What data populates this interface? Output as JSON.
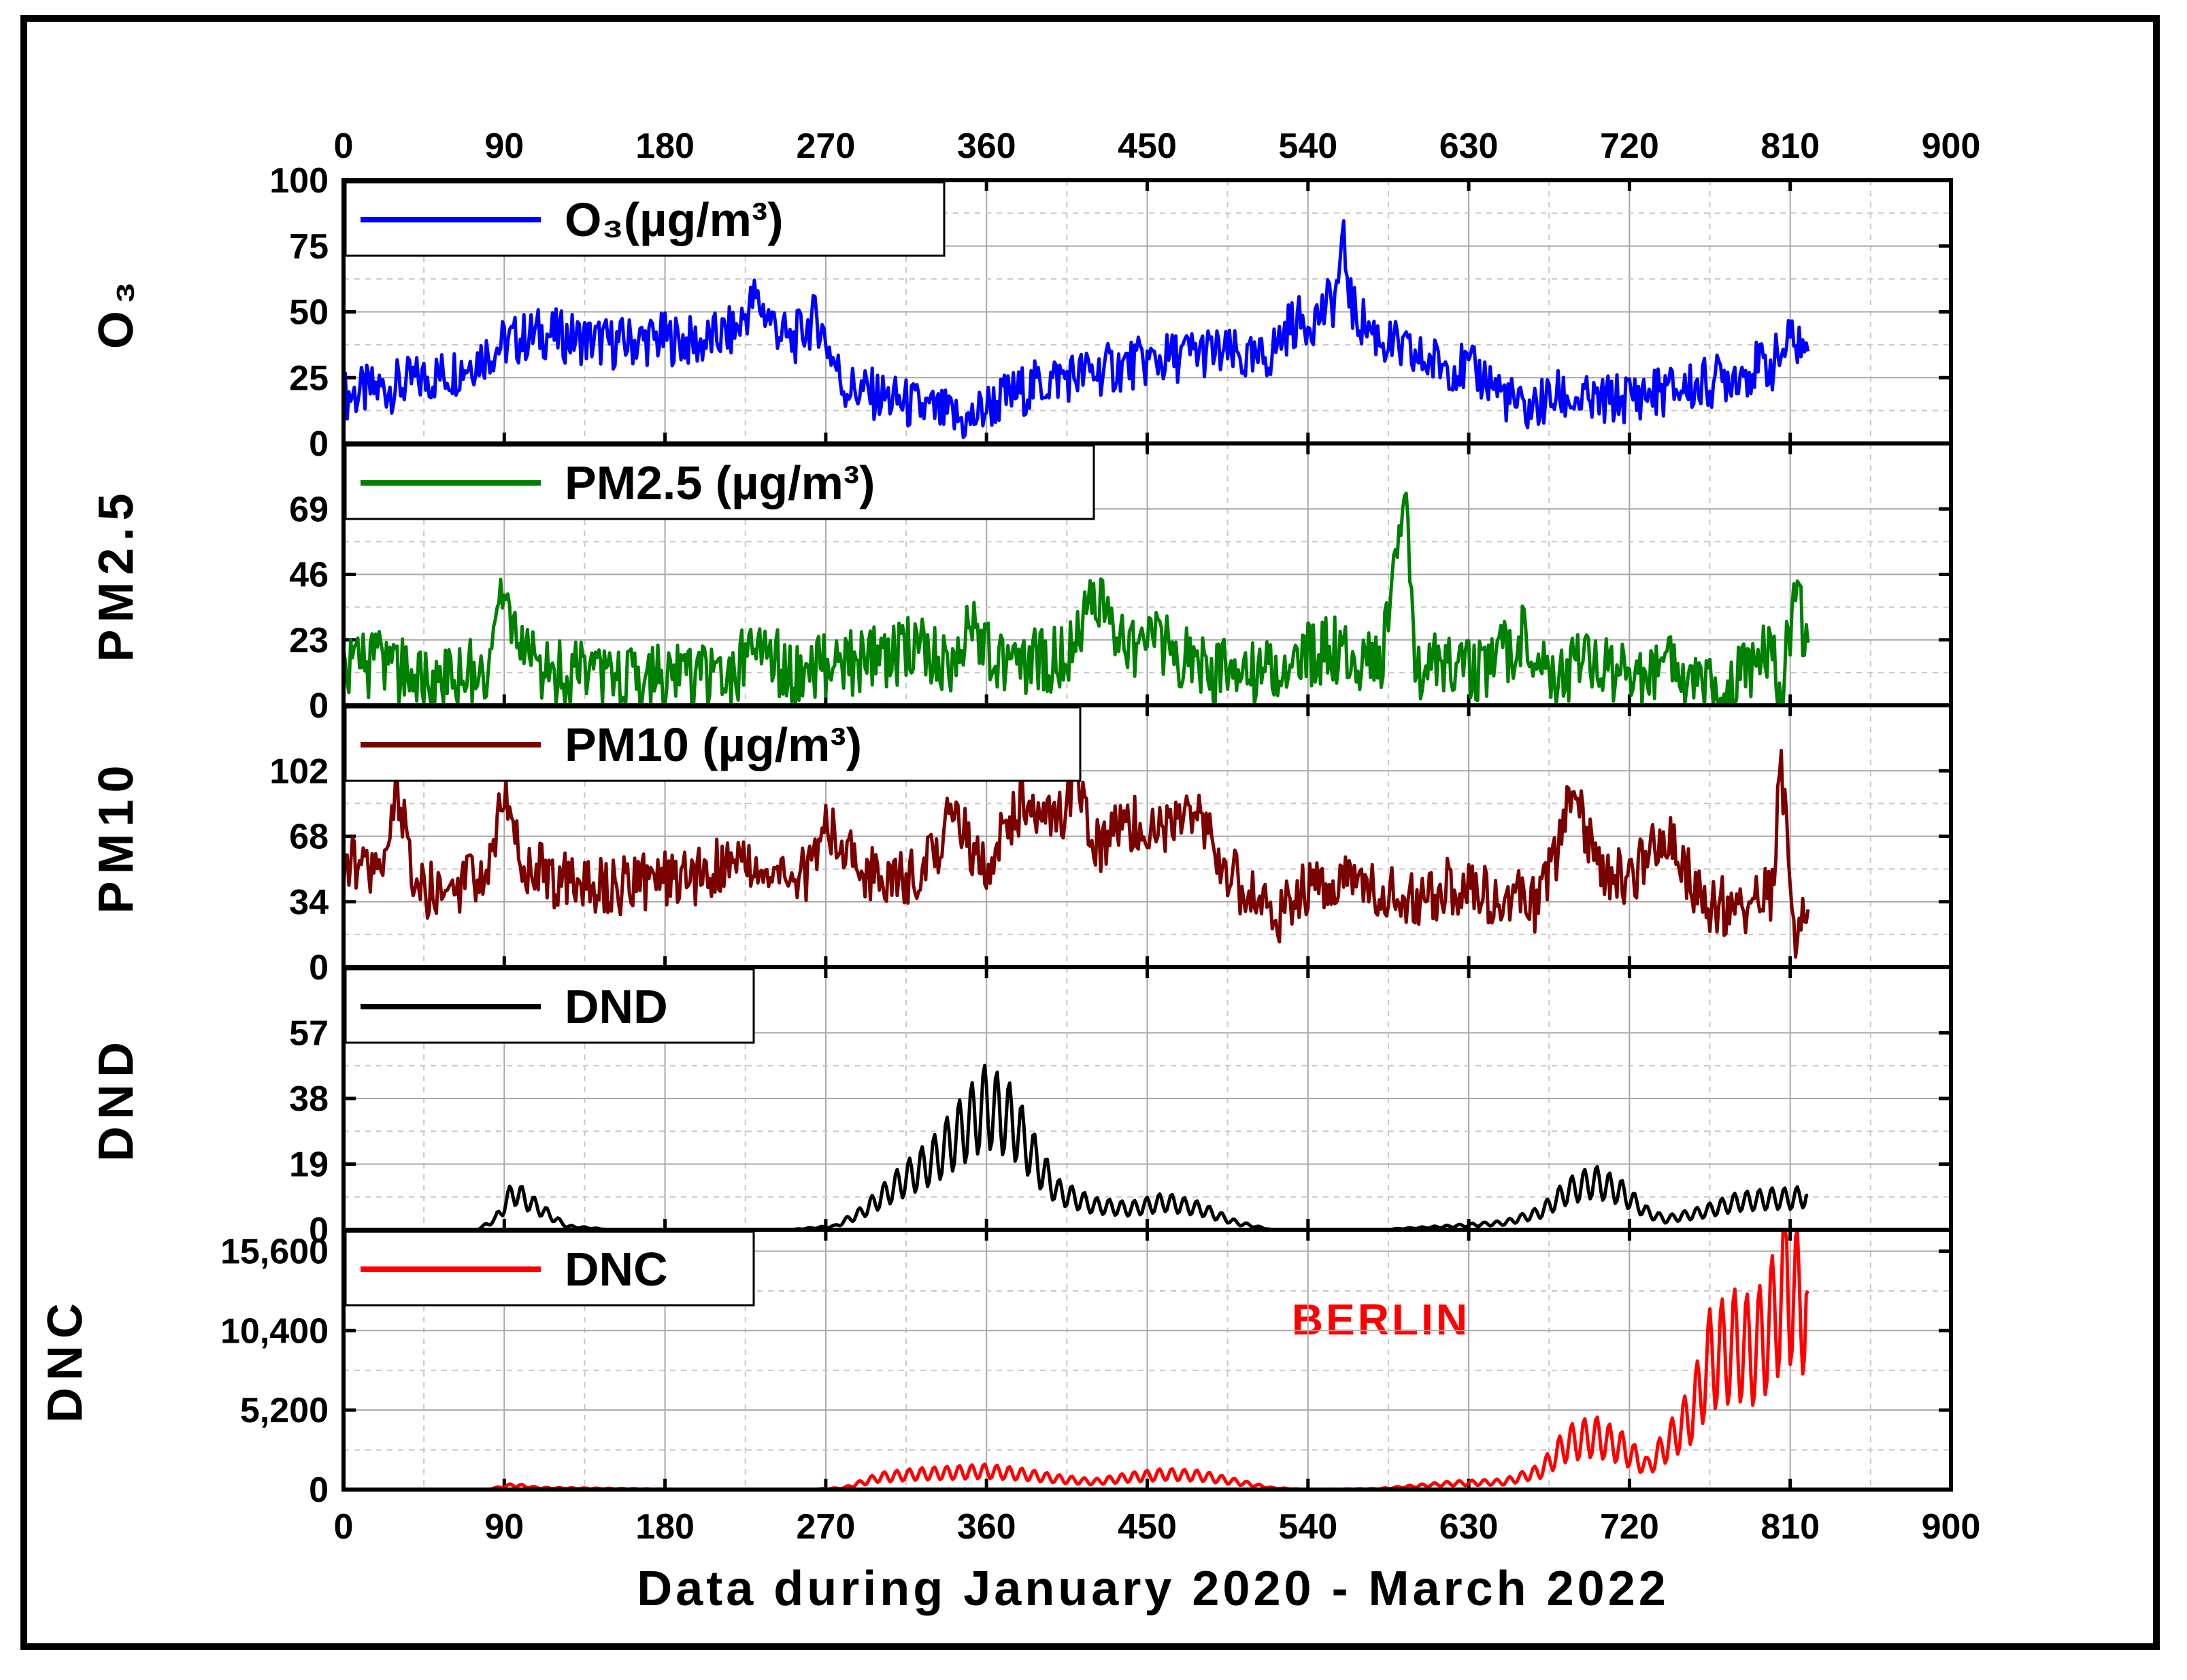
{
  "chart_data": {
    "type": "line",
    "xlabel": "Data during January 2020 - March 2022",
    "xlim": [
      0,
      900
    ],
    "x_ticks": [
      "0",
      "90",
      "180",
      "270",
      "360",
      "450",
      "540",
      "630",
      "720",
      "810",
      "900"
    ],
    "x_ticks_top": true,
    "grid": true,
    "annotation": "BERLIN",
    "panels": [
      {
        "id": "o3",
        "ylabel": "O₃",
        "legend": "O₃(µg/m³)",
        "color": "#0000ff",
        "ylim": [
          0,
          100
        ],
        "y_ticks": [
          "0",
          "25",
          "50",
          "75",
          "100"
        ],
        "series": {
          "x": [
            0,
            30,
            60,
            90,
            110,
            130,
            150,
            180,
            200,
            220,
            230,
            250,
            265,
            280,
            300,
            330,
            350,
            360,
            380,
            400,
            420,
            440,
            460,
            480,
            500,
            510,
            520,
            530,
            545,
            555,
            560,
            565,
            580,
            600,
            620,
            640,
            660,
            680,
            700,
            720,
            740,
            760,
            780,
            800,
            812,
            820
          ],
          "y": [
            18,
            22,
            27,
            38,
            42,
            40,
            38,
            40,
            38,
            43,
            55,
            38,
            48,
            22,
            18,
            12,
            8,
            14,
            20,
            25,
            27,
            30,
            32,
            35,
            33,
            30,
            35,
            45,
            48,
            55,
            75,
            50,
            40,
            32,
            30,
            25,
            12,
            18,
            15,
            18,
            20,
            22,
            27,
            30,
            40,
            35
          ]
        }
      },
      {
        "id": "pm25",
        "ylabel": "PM2.5",
        "legend": "PM2.5 (µg/m³)",
        "color": "#008000",
        "ylim": [
          0,
          92
        ],
        "y_ticks": [
          "0",
          "23",
          "46",
          "69"
        ],
        "series": {
          "x": [
            0,
            20,
            40,
            60,
            80,
            90,
            100,
            120,
            150,
            180,
            200,
            220,
            230,
            250,
            270,
            300,
            320,
            340,
            350,
            360,
            380,
            400,
            410,
            420,
            440,
            450,
            470,
            500,
            520,
            540,
            560,
            580,
            595,
            600,
            620,
            640,
            660,
            680,
            700,
            720,
            740,
            760,
            780,
            800,
            805,
            812,
            820
          ],
          "y": [
            12,
            14,
            10,
            8,
            14,
            40,
            16,
            12,
            9,
            10,
            9,
            11,
            24,
            10,
            13,
            16,
            22,
            16,
            28,
            20,
            14,
            17,
            22,
            40,
            15,
            28,
            16,
            10,
            13,
            18,
            20,
            14,
            72,
            12,
            14,
            11,
            24,
            10,
            16,
            10,
            13,
            9,
            8,
            19,
            3,
            40,
            22
          ]
        }
      },
      {
        "id": "pm10",
        "ylabel": "PM10",
        "legend": "PM10 (µg/m³)",
        "color": "#7b0000",
        "ylim": [
          0,
          136
        ],
        "y_ticks": [
          "0",
          "34",
          "68",
          "102"
        ],
        "series": {
          "x": [
            0,
            20,
            30,
            40,
            60,
            80,
            90,
            100,
            120,
            150,
            180,
            200,
            220,
            240,
            260,
            270,
            290,
            320,
            330,
            340,
            360,
            370,
            380,
            400,
            410,
            420,
            440,
            460,
            480,
            490,
            500,
            520,
            540,
            560,
            580,
            600,
            620,
            640,
            660,
            670,
            690,
            700,
            720,
            740,
            760,
            780,
            800,
            805,
            812,
            820
          ],
          "y": [
            55,
            50,
            92,
            42,
            38,
            48,
            95,
            55,
            45,
            42,
            45,
            48,
            55,
            45,
            50,
            75,
            50,
            48,
            55,
            80,
            50,
            70,
            85,
            75,
            95,
            60,
            75,
            70,
            80,
            55,
            45,
            25,
            40,
            45,
            42,
            35,
            42,
            38,
            35,
            32,
            95,
            55,
            45,
            70,
            35,
            30,
            40,
            105,
            12,
            30
          ]
        }
      },
      {
        "id": "dnd",
        "ylabel": "DND",
        "legend": "DND",
        "color": "#000000",
        "ylim": [
          0,
          76
        ],
        "y_ticks": [
          "0",
          "19",
          "38",
          "57"
        ],
        "series": {
          "x": [
            0,
            60,
            75,
            85,
            95,
            110,
            125,
            150,
            200,
            250,
            275,
            290,
            300,
            310,
            330,
            345,
            360,
            375,
            390,
            400,
            420,
            440,
            460,
            480,
            500,
            510,
            520,
            540,
            580,
            620,
            650,
            670,
            685,
            700,
            715,
            730,
            740,
            760,
            780,
            800,
            812,
            820
          ],
          "y": [
            0,
            0,
            0,
            3,
            11,
            6,
            1,
            0,
            0,
            0,
            1,
            5,
            9,
            13,
            20,
            28,
            36,
            31,
            18,
            11,
            7,
            6,
            8,
            6,
            2,
            1,
            0,
            0,
            0,
            1,
            2,
            5,
            11,
            14,
            11,
            5,
            3,
            5,
            8,
            9,
            9,
            10
          ]
        }
      },
      {
        "id": "dnc",
        "ylabel": "DNC",
        "legend": "DNC",
        "color": "#ff0000",
        "ylim": [
          0,
          17000
        ],
        "y_ticks": [
          "0",
          "5,200",
          "10,400",
          "15,600"
        ],
        "series": {
          "x": [
            0,
            80,
            95,
            110,
            200,
            260,
            280,
            300,
            320,
            340,
            360,
            380,
            400,
            420,
            440,
            460,
            480,
            500,
            520,
            540,
            580,
            620,
            650,
            670,
            685,
            700,
            715,
            730,
            745,
            755,
            765,
            780,
            790,
            800,
            808,
            815,
            820
          ],
          "y": [
            0,
            0,
            300,
            100,
            0,
            0,
            100,
            800,
            1000,
            1100,
            1200,
            1000,
            700,
            500,
            800,
            1000,
            900,
            500,
            100,
            0,
            50,
            400,
            500,
            1200,
            3000,
            3500,
            2800,
            1500,
            3500,
            5000,
            8500,
            9500,
            9000,
            11000,
            14000,
            12000,
            13000
          ]
        }
      }
    ]
  }
}
